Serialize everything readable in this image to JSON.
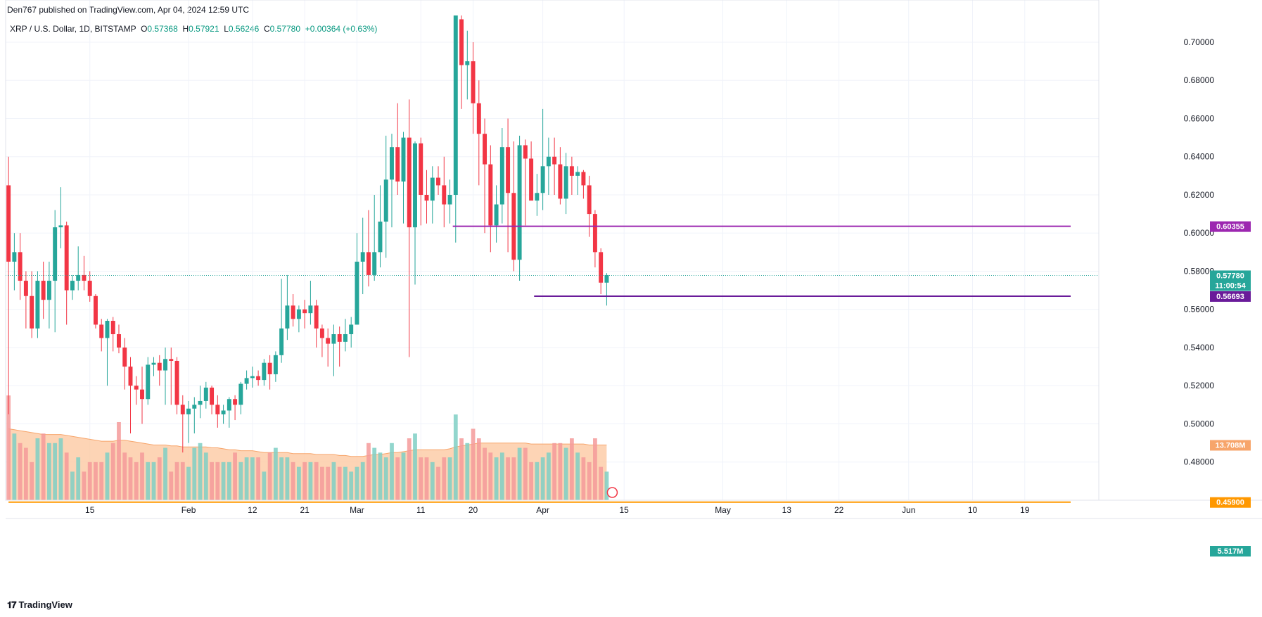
{
  "header": {
    "publish_line": "Den767 published on TradingView.com, Apr 04, 2024 12:59 UTC"
  },
  "legend": {
    "symbol": "XRP / U.S. Dollar, 1D, BITSTAMP",
    "o_label": "O",
    "o": "0.57368",
    "h_label": "H",
    "h": "0.57921",
    "l_label": "L",
    "l": "0.56246",
    "c_label": "C",
    "c": "0.57780",
    "change": "+0.00364 (+0.63%)"
  },
  "footer": {
    "brand": "TradingView"
  },
  "colors": {
    "up": "#26a69a",
    "down": "#f23645",
    "vol_up": "#7fcfc4",
    "vol_down": "#f49a9a",
    "vol_ma_fill": "#fcc9a3",
    "vol_ma_line": "#f7a56b",
    "level_purple_top": "#9c27b0",
    "level_purple_bottom": "#6a1b9a",
    "level_orange": "#ff9800",
    "grid": "#f0f3fa"
  },
  "chart_data": {
    "type": "candlestick",
    "title": "XRP / U.S. Dollar, 1D, BITSTAMP",
    "ylim": [
      0.46,
      0.714
    ],
    "y_ticks": [
      "0.70000",
      "0.68000",
      "0.66000",
      "0.64000",
      "0.62000",
      "0.60000",
      "0.58000",
      "0.56000",
      "0.54000",
      "0.52000",
      "0.50000",
      "0.48000"
    ],
    "x_ticks": [
      "15",
      "Feb",
      "12",
      "21",
      "Mar",
      "11",
      "20",
      "Apr",
      "15",
      "May",
      "13",
      "22",
      "Jun",
      "10",
      "19"
    ],
    "x_tick_index": [
      14,
      31,
      42,
      51,
      60,
      71,
      80,
      92,
      106,
      123,
      134,
      143,
      155,
      166,
      175
    ],
    "total_slots": 188,
    "candles": [
      [
        0.625,
        0.64,
        0.505,
        0.585
      ],
      [
        0.585,
        0.6,
        0.57,
        0.59
      ],
      [
        0.59,
        0.6,
        0.565,
        0.575
      ],
      [
        0.575,
        0.58,
        0.55,
        0.567
      ],
      [
        0.567,
        0.58,
        0.545,
        0.55
      ],
      [
        0.55,
        0.58,
        0.545,
        0.575
      ],
      [
        0.575,
        0.585,
        0.555,
        0.565
      ],
      [
        0.565,
        0.585,
        0.55,
        0.575
      ],
      [
        0.575,
        0.612,
        0.548,
        0.603
      ],
      [
        0.603,
        0.624,
        0.592,
        0.604
      ],
      [
        0.604,
        0.606,
        0.552,
        0.57
      ],
      [
        0.57,
        0.578,
        0.565,
        0.575
      ],
      [
        0.575,
        0.593,
        0.57,
        0.578
      ],
      [
        0.578,
        0.588,
        0.57,
        0.575
      ],
      [
        0.575,
        0.58,
        0.564,
        0.567
      ],
      [
        0.567,
        0.568,
        0.55,
        0.552
      ],
      [
        0.552,
        0.555,
        0.538,
        0.545
      ],
      [
        0.545,
        0.555,
        0.52,
        0.554
      ],
      [
        0.554,
        0.556,
        0.538,
        0.547
      ],
      [
        0.547,
        0.552,
        0.537,
        0.54
      ],
      [
        0.54,
        0.545,
        0.518,
        0.53
      ],
      [
        0.53,
        0.535,
        0.495,
        0.52
      ],
      [
        0.52,
        0.525,
        0.51,
        0.518
      ],
      [
        0.518,
        0.53,
        0.5,
        0.513
      ],
      [
        0.513,
        0.535,
        0.51,
        0.531
      ],
      [
        0.531,
        0.535,
        0.525,
        0.532
      ],
      [
        0.532,
        0.536,
        0.52,
        0.528
      ],
      [
        0.528,
        0.54,
        0.51,
        0.534
      ],
      [
        0.534,
        0.54,
        0.51,
        0.533
      ],
      [
        0.533,
        0.535,
        0.505,
        0.51
      ],
      [
        0.51,
        0.515,
        0.485,
        0.505
      ],
      [
        0.505,
        0.512,
        0.49,
        0.508
      ],
      [
        0.508,
        0.514,
        0.495,
        0.51
      ],
      [
        0.51,
        0.52,
        0.503,
        0.512
      ],
      [
        0.512,
        0.522,
        0.508,
        0.519
      ],
      [
        0.519,
        0.52,
        0.505,
        0.51
      ],
      [
        0.51,
        0.515,
        0.498,
        0.505
      ],
      [
        0.505,
        0.51,
        0.5,
        0.507
      ],
      [
        0.507,
        0.514,
        0.498,
        0.513
      ],
      [
        0.513,
        0.515,
        0.502,
        0.51
      ],
      [
        0.51,
        0.522,
        0.505,
        0.521
      ],
      [
        0.521,
        0.528,
        0.518,
        0.524
      ],
      [
        0.524,
        0.53,
        0.519,
        0.525
      ],
      [
        0.525,
        0.528,
        0.52,
        0.523
      ],
      [
        0.523,
        0.534,
        0.52,
        0.532
      ],
      [
        0.532,
        0.536,
        0.518,
        0.526
      ],
      [
        0.526,
        0.538,
        0.522,
        0.536
      ],
      [
        0.536,
        0.576,
        0.532,
        0.55
      ],
      [
        0.55,
        0.578,
        0.544,
        0.562
      ],
      [
        0.562,
        0.568,
        0.551,
        0.555
      ],
      [
        0.555,
        0.562,
        0.548,
        0.56
      ],
      [
        0.56,
        0.565,
        0.55,
        0.558
      ],
      [
        0.558,
        0.575,
        0.552,
        0.562
      ],
      [
        0.562,
        0.565,
        0.54,
        0.55
      ],
      [
        0.55,
        0.552,
        0.535,
        0.545
      ],
      [
        0.545,
        0.55,
        0.53,
        0.542
      ],
      [
        0.542,
        0.552,
        0.525,
        0.547
      ],
      [
        0.547,
        0.551,
        0.53,
        0.543
      ],
      [
        0.543,
        0.555,
        0.538,
        0.547
      ],
      [
        0.547,
        0.556,
        0.54,
        0.552
      ],
      [
        0.552,
        0.6,
        0.552,
        0.585
      ],
      [
        0.585,
        0.608,
        0.568,
        0.59
      ],
      [
        0.59,
        0.612,
        0.572,
        0.578
      ],
      [
        0.578,
        0.62,
        0.575,
        0.59
      ],
      [
        0.59,
        0.625,
        0.582,
        0.606
      ],
      [
        0.606,
        0.651,
        0.587,
        0.628
      ],
      [
        0.628,
        0.652,
        0.603,
        0.645
      ],
      [
        0.645,
        0.668,
        0.62,
        0.627
      ],
      [
        0.627,
        0.653,
        0.605,
        0.65
      ],
      [
        0.65,
        0.67,
        0.535,
        0.603
      ],
      [
        0.603,
        0.648,
        0.573,
        0.647
      ],
      [
        0.647,
        0.65,
        0.604,
        0.62
      ],
      [
        0.62,
        0.633,
        0.605,
        0.617
      ],
      [
        0.617,
        0.635,
        0.605,
        0.629
      ],
      [
        0.629,
        0.635,
        0.62,
        0.625
      ],
      [
        0.625,
        0.64,
        0.603,
        0.615
      ],
      [
        0.615,
        0.628,
        0.605,
        0.62
      ],
      [
        0.62,
        0.714,
        0.595,
        0.714
      ],
      [
        0.712,
        0.714,
        0.665,
        0.688
      ],
      [
        0.688,
        0.706,
        0.67,
        0.69
      ],
      [
        0.69,
        0.7,
        0.652,
        0.668
      ],
      [
        0.668,
        0.68,
        0.625,
        0.652
      ],
      [
        0.652,
        0.66,
        0.6,
        0.636
      ],
      [
        0.636,
        0.646,
        0.59,
        0.604
      ],
      [
        0.604,
        0.625,
        0.595,
        0.615
      ],
      [
        0.615,
        0.655,
        0.605,
        0.645
      ],
      [
        0.645,
        0.66,
        0.59,
        0.621
      ],
      [
        0.621,
        0.648,
        0.58,
        0.586
      ],
      [
        0.586,
        0.651,
        0.575,
        0.646
      ],
      [
        0.646,
        0.649,
        0.604,
        0.639
      ],
      [
        0.639,
        0.648,
        0.618,
        0.617
      ],
      [
        0.617,
        0.631,
        0.609,
        0.621
      ],
      [
        0.621,
        0.665,
        0.612,
        0.635
      ],
      [
        0.635,
        0.65,
        0.62,
        0.64
      ],
      [
        0.64,
        0.65,
        0.62,
        0.636
      ],
      [
        0.636,
        0.645,
        0.615,
        0.618
      ],
      [
        0.618,
        0.642,
        0.61,
        0.635
      ],
      [
        0.635,
        0.64,
        0.62,
        0.63
      ],
      [
        0.63,
        0.635,
        0.62,
        0.632
      ],
      [
        0.632,
        0.633,
        0.618,
        0.625
      ],
      [
        0.625,
        0.63,
        0.598,
        0.61
      ],
      [
        0.61,
        0.612,
        0.582,
        0.59
      ],
      [
        0.59,
        0.592,
        0.568,
        0.574
      ],
      [
        0.574,
        0.579,
        0.562,
        0.578
      ]
    ],
    "volume_scale_max": 13.0,
    "volume": [
      11.0,
      7.0,
      6.0,
      5.5,
      4.0,
      6.5,
      7.0,
      6.0,
      6.0,
      6.5,
      5.0,
      3.0,
      4.5,
      3.0,
      4.0,
      4.0,
      4.0,
      5.0,
      6.0,
      8.2,
      5.0,
      4.5,
      4.0,
      5.0,
      4.0,
      4.0,
      4.5,
      5.5,
      3.0,
      4.0,
      4.0,
      3.5,
      5.5,
      6.0,
      5.0,
      4.0,
      4.0,
      4.0,
      4.0,
      5.0,
      4.0,
      4.5,
      4.5,
      4.5,
      3.0,
      5.0,
      5.5,
      4.5,
      4.5,
      4.0,
      3.5,
      4.0,
      4.0,
      4.0,
      3.5,
      3.5,
      4.0,
      3.5,
      3.5,
      3.0,
      3.5,
      4.0,
      6.0,
      5.5,
      5.0,
      4.5,
      6.0,
      4.5,
      5.0,
      6.5,
      7.0,
      4.5,
      4.5,
      4.0,
      3.5,
      4.5,
      4.5,
      9.0,
      6.5,
      6.0,
      7.5,
      6.5,
      5.5,
      5.0,
      4.5,
      5.0,
      4.5,
      4.5,
      5.5,
      5.5,
      4.0,
      4.0,
      4.5,
      5.0,
      6.0,
      6.0,
      5.5,
      6.5,
      5.0,
      4.5,
      4.0,
      6.5,
      3.5,
      3.0
    ],
    "volume_ma": [
      7.5,
      7.4,
      7.3,
      7.2,
      7.1,
      7.0,
      6.9,
      6.9,
      6.9,
      6.9,
      6.8,
      6.7,
      6.6,
      6.5,
      6.4,
      6.3,
      6.2,
      6.2,
      6.2,
      6.3,
      6.3,
      6.2,
      6.1,
      6.0,
      5.9,
      5.8,
      5.8,
      5.8,
      5.7,
      5.7,
      5.6,
      5.6,
      5.6,
      5.6,
      5.6,
      5.5,
      5.5,
      5.4,
      5.3,
      5.3,
      5.2,
      5.2,
      5.2,
      5.1,
      5.0,
      5.0,
      5.0,
      5.0,
      5.0,
      4.9,
      4.9,
      4.9,
      4.9,
      4.8,
      4.8,
      4.8,
      4.8,
      4.7,
      4.7,
      4.6,
      4.6,
      4.6,
      4.7,
      4.8,
      4.8,
      4.9,
      5.0,
      5.0,
      5.1,
      5.2,
      5.3,
      5.3,
      5.3,
      5.3,
      5.3,
      5.3,
      5.4,
      5.6,
      5.7,
      5.8,
      5.9,
      6.0,
      6.0,
      6.0,
      6.0,
      6.0,
      6.0,
      6.0,
      6.0,
      6.0,
      5.9,
      5.9,
      5.9,
      5.9,
      5.9,
      5.9,
      5.9,
      5.9,
      5.9,
      5.9,
      5.8,
      5.8,
      5.8,
      5.8
    ],
    "levels": [
      {
        "name": "upper-resistance",
        "value": 0.60355,
        "label": "0.60355",
        "color": "#9c27b0",
        "start_index": 77
      },
      {
        "name": "lower-support",
        "value": 0.56693,
        "label": "0.56693",
        "color": "#6a1b9a",
        "start_index": 91
      },
      {
        "name": "orange-level",
        "value": 0.459,
        "label": "0.45900",
        "color": "#ff9800",
        "start_index": 0
      }
    ],
    "last_price": {
      "value": 0.5778,
      "label": "0.57780",
      "countdown": "11:00:54"
    },
    "volume_labels": {
      "ma": "13.708M",
      "current": "5.517M"
    }
  }
}
